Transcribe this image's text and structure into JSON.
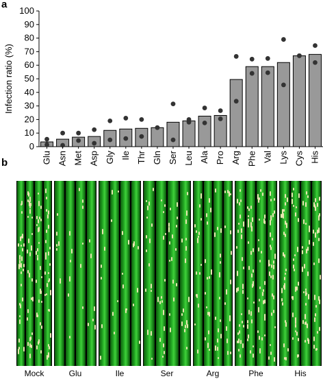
{
  "panel_a_label": "a",
  "panel_b_label": "b",
  "chart_data": {
    "type": "bar",
    "xlabel": "",
    "ylabel": "Infection ratio (%)",
    "ylim": [
      0,
      100
    ],
    "yticks": [
      0,
      10,
      20,
      30,
      40,
      50,
      60,
      70,
      80,
      90,
      100
    ],
    "categories": [
      "Glu",
      "Asn",
      "Met",
      "Asp",
      "Gly",
      "Ile",
      "Thr",
      "Gln",
      "Ser",
      "Leu",
      "Ala",
      "Pro",
      "Arg",
      "Phe",
      "Val",
      "Lys",
      "Cys",
      "His"
    ],
    "values": [
      3.5,
      5.5,
      7,
      7.5,
      12,
      13,
      13.5,
      14,
      18,
      19,
      22.5,
      23,
      49.5,
      59,
      59,
      62,
      67,
      68
    ],
    "points": [
      [
        5.5,
        1.5
      ],
      [
        10,
        1
      ],
      [
        10,
        4.5
      ],
      [
        12.5,
        2.5
      ],
      [
        19,
        5
      ],
      [
        21,
        6
      ],
      [
        20,
        7.5
      ],
      [
        14,
        14
      ],
      [
        31.5,
        5
      ],
      [
        20,
        18
      ],
      [
        28.5,
        17.5
      ],
      [
        26.5,
        20.5
      ],
      [
        66.5,
        33.5
      ],
      [
        64.5,
        54
      ],
      [
        65,
        54.5
      ],
      [
        79,
        45.5
      ],
      [
        67,
        67
      ],
      [
        74.5,
        62
      ]
    ],
    "bar_color": "#999999",
    "point_color": "#333333"
  },
  "photo_panels": [
    {
      "label": "Mock",
      "lesions": "heavy"
    },
    {
      "label": "Glu",
      "lesions": "few"
    },
    {
      "label": "Ile",
      "lesions": "few"
    },
    {
      "label": "Ser",
      "lesions": "moderate"
    },
    {
      "label": "Arg",
      "lesions": "moderate"
    },
    {
      "label": "Phe",
      "lesions": "heavy"
    },
    {
      "label": "His",
      "lesions": "heavy"
    }
  ]
}
